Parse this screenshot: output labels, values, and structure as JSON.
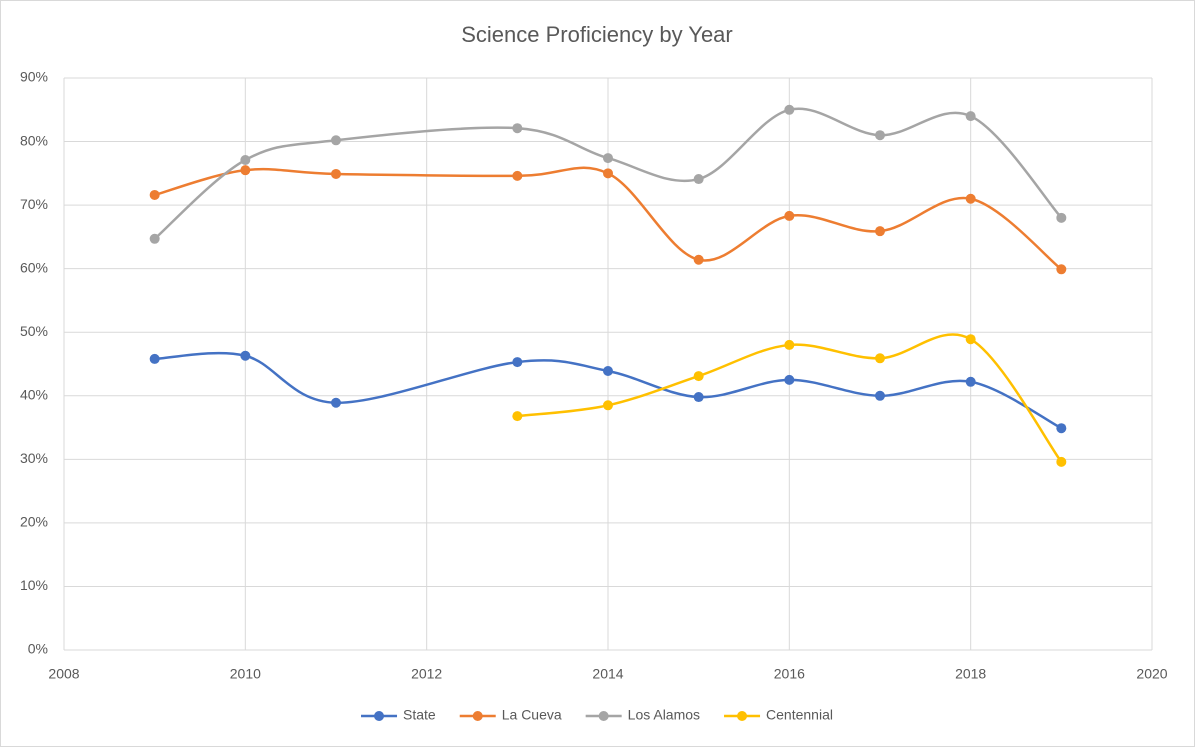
{
  "chart_data": {
    "type": "line",
    "title": "Science Proficiency by Year",
    "x": [
      2009,
      2010,
      2011,
      2013,
      2014,
      2015,
      2016,
      2017,
      2018,
      2019
    ],
    "series": [
      {
        "name": "State",
        "color": "#4472c4",
        "values": [
          45.8,
          46.3,
          38.9,
          45.3,
          43.9,
          39.8,
          42.5,
          40.0,
          42.2,
          34.9
        ]
      },
      {
        "name": "La Cueva",
        "color": "#ed7d31",
        "values": [
          71.6,
          75.5,
          74.9,
          74.6,
          75.0,
          61.4,
          68.3,
          65.9,
          71.0,
          59.9
        ]
      },
      {
        "name": "Los Alamos",
        "color": "#a5a5a5",
        "values": [
          64.7,
          77.1,
          80.2,
          82.1,
          77.4,
          74.1,
          85.0,
          81.0,
          84.0,
          68.0
        ]
      },
      {
        "name": "Centennial",
        "color": "#ffc000",
        "values": [
          null,
          null,
          null,
          36.8,
          38.5,
          43.1,
          48.0,
          45.9,
          48.9,
          29.6
        ]
      }
    ],
    "xlim": [
      2008,
      2020
    ],
    "xticks": [
      2008,
      2010,
      2012,
      2014,
      2016,
      2018,
      2020
    ],
    "ylim": [
      0,
      90
    ],
    "yticks": [
      {
        "value": 0,
        "label": "0%"
      },
      {
        "value": 10,
        "label": "10%"
      },
      {
        "value": 20,
        "label": "20%"
      },
      {
        "value": 30,
        "label": "30%"
      },
      {
        "value": 40,
        "label": "40%"
      },
      {
        "value": 50,
        "label": "50%"
      },
      {
        "value": 60,
        "label": "60%"
      },
      {
        "value": 70,
        "label": "70%"
      },
      {
        "value": 80,
        "label": "80%"
      },
      {
        "value": 90,
        "label": "90%"
      }
    ],
    "grid": true,
    "smooth": true,
    "legend": "bottom"
  }
}
